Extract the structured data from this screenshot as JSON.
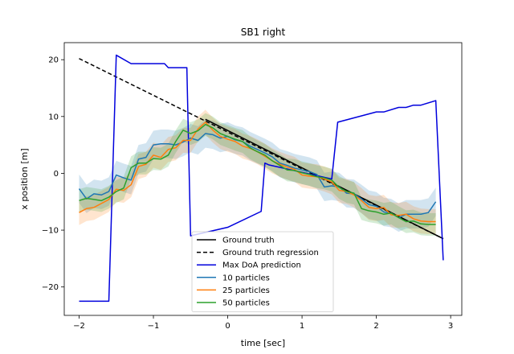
{
  "chart_data": {
    "type": "line",
    "title": "SB1 right",
    "xlabel": "time [sec]",
    "ylabel": "x position [m]",
    "xlim": [
      -2.2,
      3.15
    ],
    "ylim": [
      -25,
      23
    ],
    "xticks": [
      -2,
      -1,
      0,
      1,
      2,
      3
    ],
    "yticks": [
      -20,
      -10,
      0,
      10,
      20
    ],
    "legend_position": "lower-center",
    "x": [
      -2.0,
      -1.9,
      -1.8,
      -1.7,
      -1.6,
      -1.5,
      -1.4,
      -1.3,
      -1.2,
      -1.1,
      -1.0,
      -0.9,
      -0.8,
      -0.7,
      -0.6,
      -0.5,
      -0.4,
      -0.3,
      -0.2,
      -0.1,
      0.0,
      0.1,
      0.2,
      0.3,
      0.4,
      0.5,
      0.6,
      0.7,
      0.8,
      0.9,
      1.0,
      1.1,
      1.2,
      1.3,
      1.4,
      1.5,
      1.6,
      1.7,
      1.8,
      1.9,
      2.0,
      2.1,
      2.2,
      2.3,
      2.4,
      2.5,
      2.6,
      2.7,
      2.8
    ],
    "series": [
      {
        "name": "Ground truth",
        "color": "#000000",
        "style": "solid",
        "x": [
          -0.3,
          2.9
        ],
        "y": [
          9.5,
          -11.5
        ]
      },
      {
        "name": "Ground truth regression",
        "color": "#000000",
        "style": "dashed",
        "x": [
          -2.0,
          2.9
        ],
        "y": [
          20.2,
          -11.5
        ]
      },
      {
        "name": "Max DoA prediction",
        "color": "#0000dd",
        "style": "solid",
        "x": [
          -2.0,
          -1.6,
          -1.5,
          -1.3,
          -0.85,
          -0.8,
          -0.55,
          -0.5,
          0.0,
          0.45,
          0.5,
          0.55,
          1.4,
          1.48,
          2.0,
          2.1,
          2.3,
          2.4,
          2.5,
          2.6,
          2.8,
          2.9
        ],
        "y": [
          -22.5,
          -22.5,
          20.8,
          19.3,
          19.3,
          18.6,
          18.6,
          -11.0,
          -9.5,
          -6.7,
          1.8,
          1.5,
          -1.0,
          9.0,
          10.8,
          10.8,
          11.6,
          11.6,
          12.0,
          12.0,
          12.8,
          -15.3
        ]
      },
      {
        "name": "10 particles",
        "color": "#1f77b4",
        "style": "solid",
        "band": 2.5,
        "y": [
          -2.7,
          -4.5,
          -3.6,
          -3.8,
          -3.2,
          -0.3,
          -0.8,
          -1.2,
          2.5,
          2.8,
          5.0,
          5.2,
          5.2,
          5.0,
          5.5,
          6.2,
          5.8,
          7.0,
          6.8,
          6.2,
          6.5,
          5.9,
          5.6,
          4.8,
          4.2,
          3.6,
          2.9,
          1.8,
          1.4,
          0.9,
          0.6,
          0.3,
          -0.2,
          -2.4,
          -2.2,
          -2.4,
          -3.5,
          -3.6,
          -4.5,
          -5.5,
          -5.8,
          -6.8,
          -7.0,
          -7.8,
          -7.2,
          -7.2,
          -7.2,
          -6.9,
          -5.0
        ]
      },
      {
        "name": "25 particles",
        "color": "#ff7f0e",
        "style": "solid",
        "band": 2.2,
        "y": [
          -6.9,
          -6.2,
          -6.0,
          -5.3,
          -4.6,
          -2.8,
          -3.0,
          -2.0,
          1.2,
          1.6,
          3.2,
          2.8,
          4.2,
          4.5,
          5.8,
          5.8,
          7.8,
          9.0,
          7.6,
          6.5,
          6.0,
          5.6,
          4.8,
          4.4,
          3.8,
          3.0,
          2.2,
          1.6,
          1.1,
          0.7,
          -0.3,
          -0.5,
          -0.6,
          -1.0,
          -1.5,
          -3.0,
          -3.2,
          -3.8,
          -4.8,
          -6.0,
          -6.2,
          -6.0,
          -7.3,
          -7.4,
          -7.2,
          -8.0,
          -8.4,
          -8.5,
          -8.5
        ]
      },
      {
        "name": "50 particles",
        "color": "#2ca02c",
        "style": "solid",
        "band": 2.0,
        "y": [
          -4.8,
          -4.4,
          -4.6,
          -4.8,
          -4.2,
          -3.2,
          -2.6,
          1.0,
          1.8,
          1.8,
          2.6,
          2.5,
          3.2,
          5.6,
          7.6,
          7.0,
          7.5,
          8.6,
          8.0,
          7.0,
          6.5,
          6.0,
          5.6,
          4.5,
          3.8,
          3.2,
          2.2,
          1.4,
          0.6,
          0.5,
          0.1,
          -0.2,
          -0.6,
          -0.8,
          -1.2,
          -2.5,
          -3.2,
          -3.5,
          -6.2,
          -6.6,
          -6.8,
          -7.2,
          -7.0,
          -7.8,
          -8.5,
          -8.4,
          -8.9,
          -9.0,
          -9.0
        ]
      }
    ]
  }
}
